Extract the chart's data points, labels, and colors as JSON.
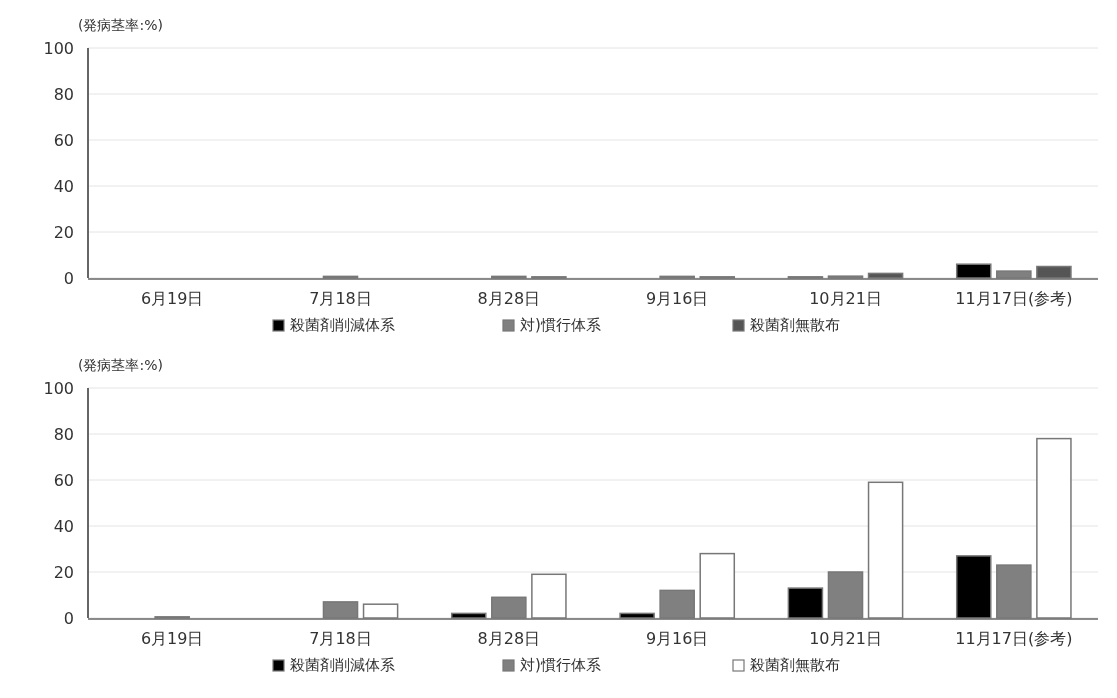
{
  "chart_data": [
    {
      "type": "bar",
      "ylabel": "(発病茎率:%)",
      "categories": [
        "6月19日",
        "7月18日",
        "8月28日",
        "9月16日",
        "10月21日",
        "11月17日(参考)"
      ],
      "series": [
        {
          "name": "殺菌剤削減体系",
          "color": "#000000",
          "values": [
            0,
            0,
            0,
            0,
            0.5,
            6
          ]
        },
        {
          "name": "対)慣行体系",
          "color": "#808080",
          "values": [
            0,
            0.7,
            0.7,
            0.7,
            0.8,
            3
          ]
        },
        {
          "name": "殺菌剤無散布",
          "color": "#555555",
          "values": [
            0,
            0,
            0.5,
            0.5,
            2,
            5
          ]
        }
      ],
      "ylim": [
        0,
        100
      ],
      "yticks": [
        0,
        20,
        40,
        60,
        80,
        100
      ],
      "grid": "y",
      "legend": "bottom"
    },
    {
      "type": "bar",
      "ylabel": "(発病茎率:%)",
      "categories": [
        "6月19日",
        "7月18日",
        "8月28日",
        "9月16日",
        "10月21日",
        "11月17日(参考)"
      ],
      "series": [
        {
          "name": "殺菌剤削減体系",
          "color": "#000000",
          "values": [
            0,
            0,
            2,
            2,
            13,
            27
          ]
        },
        {
          "name": "対)慣行体系",
          "color": "#808080",
          "values": [
            0.5,
            7,
            9,
            12,
            20,
            23
          ]
        },
        {
          "name": "殺菌剤無散布",
          "color": "#ffffff",
          "values": [
            0,
            6,
            19,
            28,
            59,
            78
          ]
        }
      ],
      "ylim": [
        0,
        100
      ],
      "yticks": [
        0,
        20,
        40,
        60,
        80,
        100
      ],
      "grid": "y",
      "legend": "bottom"
    }
  ]
}
